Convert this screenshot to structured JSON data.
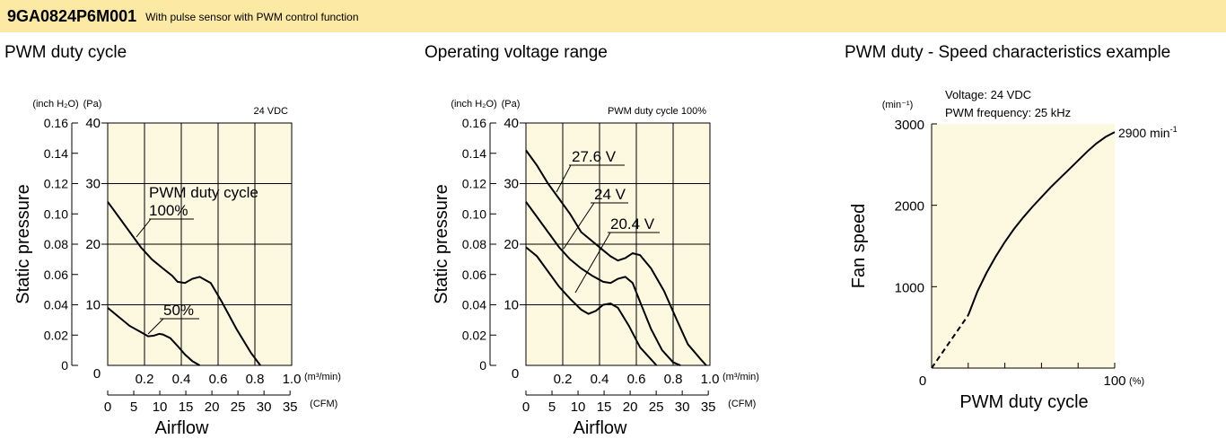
{
  "header": {
    "model": "9GA0824P6M001",
    "subtitle": "With pulse sensor with PWM control function",
    "background": "#fbe9a4"
  },
  "colors": {
    "plot_bg": "#fdf9e1",
    "line": "#000000"
  },
  "chart_data": [
    {
      "type": "line",
      "title": "PWM duty cycle",
      "ylabel": "Static pressure",
      "xlabel": "Airflow",
      "x_unit": "(m³/min)",
      "x2_unit": "(CFM)",
      "y_unit_left": "(inch H₂O)",
      "y_unit_right": "(Pa)",
      "note": "24 VDC",
      "xlim": [
        0,
        1.0
      ],
      "ylim": [
        0,
        40
      ],
      "x_ticks": [
        "0.2",
        "0.4",
        "0.6",
        "0.8",
        "1.0"
      ],
      "x2_ticks": [
        "0",
        "5",
        "10",
        "15",
        "20",
        "25",
        "30",
        "35"
      ],
      "y_inch_ticks": [
        "0",
        "0.02",
        "0.04",
        "0.06",
        "0.08",
        "0.10",
        "0.12",
        "0.14",
        "0.16"
      ],
      "y_pa_ticks": [
        "0",
        "10",
        "20",
        "30",
        "40"
      ],
      "bottom_left_zero": "0",
      "series": [
        {
          "name": "PWM duty cycle 100%",
          "x": [
            0,
            0.06,
            0.12,
            0.18,
            0.24,
            0.3,
            0.35,
            0.38,
            0.42,
            0.46,
            0.5,
            0.56,
            0.62,
            0.7,
            0.78,
            0.83
          ],
          "y": [
            27,
            24.5,
            22,
            19.5,
            17.5,
            16,
            14.8,
            13.8,
            13.6,
            14.3,
            14.6,
            13.6,
            10.5,
            6,
            2,
            0
          ]
        },
        {
          "name": "50%",
          "x": [
            0,
            0.06,
            0.12,
            0.18,
            0.22,
            0.25,
            0.28,
            0.3,
            0.34,
            0.38,
            0.42,
            0.46,
            0.5
          ],
          "y": [
            9.5,
            8,
            6.5,
            5.5,
            4.8,
            4.9,
            5.2,
            5.1,
            4.5,
            3.2,
            1.8,
            0.7,
            0
          ]
        }
      ],
      "labels": [
        {
          "text": "PWM duty cycle",
          "underline": false
        },
        {
          "text": "100%",
          "underline": true
        },
        {
          "text": "50%",
          "underline": true
        }
      ]
    },
    {
      "type": "line",
      "title": "Operating voltage range",
      "ylabel": "Static pressure",
      "xlabel": "Airflow",
      "x_unit": "(m³/min)",
      "x2_unit": "(CFM)",
      "y_unit_left": "(inch H₂O)",
      "y_unit_right": "(Pa)",
      "note": "PWM duty cycle 100%",
      "xlim": [
        0,
        1.0
      ],
      "ylim": [
        0,
        40
      ],
      "x_ticks": [
        "0.2",
        "0.4",
        "0.6",
        "0.8",
        "1.0"
      ],
      "x2_ticks": [
        "0",
        "5",
        "10",
        "15",
        "20",
        "25",
        "30",
        "35"
      ],
      "y_inch_ticks": [
        "0",
        "0.02",
        "0.04",
        "0.06",
        "0.08",
        "0.10",
        "0.12",
        "0.14",
        "0.16"
      ],
      "y_pa_ticks": [
        "0",
        "10",
        "20",
        "30",
        "40"
      ],
      "bottom_left_zero": "0",
      "series": [
        {
          "name": "27.6 V",
          "x": [
            0,
            0.06,
            0.12,
            0.18,
            0.24,
            0.3,
            0.36,
            0.42,
            0.46,
            0.5,
            0.54,
            0.58,
            0.62,
            0.68,
            0.75,
            0.82,
            0.88,
            0.95,
            0.98
          ],
          "y": [
            35.5,
            33,
            30,
            27.5,
            25,
            22,
            20.5,
            19,
            18,
            17.3,
            17.7,
            18.5,
            18.2,
            16,
            12.3,
            7.5,
            3.5,
            1,
            0
          ]
        },
        {
          "name": "24 V",
          "x": [
            0,
            0.06,
            0.12,
            0.18,
            0.24,
            0.3,
            0.36,
            0.42,
            0.46,
            0.5,
            0.54,
            0.58,
            0.62,
            0.68,
            0.74,
            0.8,
            0.84
          ],
          "y": [
            27,
            24.5,
            22,
            19.5,
            17.5,
            16,
            14.8,
            13.8,
            13.6,
            14.3,
            14.6,
            13.6,
            10.5,
            6,
            2.5,
            0.5,
            0
          ]
        },
        {
          "name": "20.4 V",
          "x": [
            0,
            0.06,
            0.12,
            0.18,
            0.24,
            0.3,
            0.34,
            0.38,
            0.42,
            0.46,
            0.5,
            0.56,
            0.62,
            0.68,
            0.71
          ],
          "y": [
            19.5,
            18,
            15.5,
            13,
            11,
            9.2,
            8.5,
            9,
            10,
            10.2,
            9.5,
            6.5,
            3,
            1,
            0
          ]
        }
      ],
      "labels": [
        {
          "text": "27.6 V",
          "underline": true
        },
        {
          "text": "24 V",
          "underline": true
        },
        {
          "text": "20.4 V",
          "underline": true
        }
      ]
    },
    {
      "type": "line",
      "title": "PWM duty - Speed characteristics example",
      "ylabel": "Fan speed",
      "xlabel": "PWM duty cycle",
      "x_unit": "(%)",
      "y_unit": "(min⁻¹)",
      "notes": [
        "Voltage: 24 VDC",
        "PWM frequency: 25 kHz"
      ],
      "xlim": [
        0,
        100
      ],
      "ylim": [
        0,
        3000
      ],
      "x_ticks": [
        "0",
        "100"
      ],
      "y_ticks": [
        "1000",
        "2000",
        "3000"
      ],
      "end_label": "2900 min",
      "end_label_sup": "-1",
      "series": [
        {
          "name": "",
          "x": [
            20,
            25,
            30,
            35,
            40,
            45,
            50,
            55,
            60,
            65,
            70,
            75,
            80,
            85,
            90,
            95,
            100
          ],
          "y": [
            650,
            940,
            1170,
            1370,
            1550,
            1710,
            1850,
            1980,
            2100,
            2220,
            2330,
            2440,
            2550,
            2660,
            2760,
            2840,
            2900
          ],
          "style": "solid"
        },
        {
          "name": "",
          "x": [
            0,
            20
          ],
          "y": [
            0,
            650
          ],
          "style": "dashed"
        }
      ]
    }
  ]
}
